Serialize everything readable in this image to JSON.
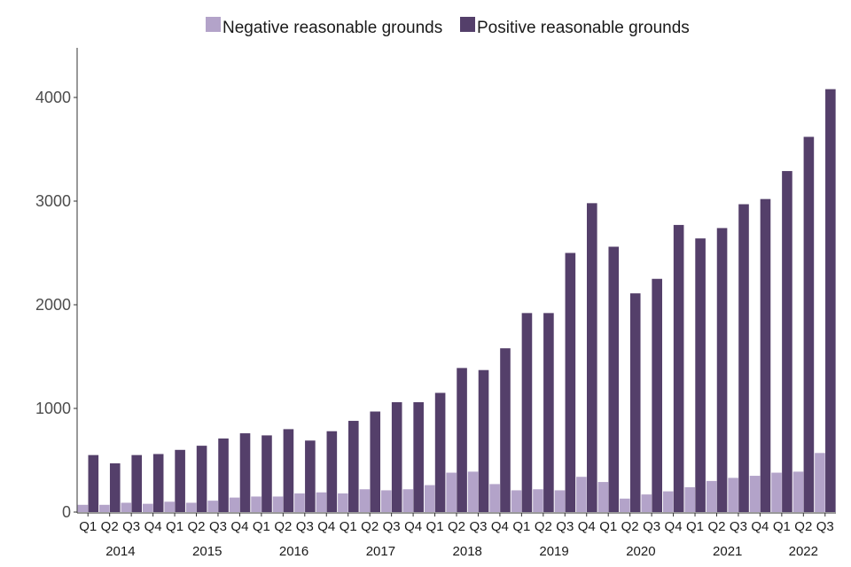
{
  "chart_data": {
    "type": "bar",
    "title": "",
    "xlabel": "",
    "ylabel": "",
    "ylim": [
      0,
      4500
    ],
    "yticks": [
      0,
      1000,
      2000,
      3000,
      4000
    ],
    "grid": false,
    "legend_position": "top",
    "categories": [
      "Q1",
      "Q2",
      "Q3",
      "Q4",
      "Q1",
      "Q2",
      "Q3",
      "Q4",
      "Q1",
      "Q2",
      "Q3",
      "Q4",
      "Q1",
      "Q2",
      "Q3",
      "Q4",
      "Q1",
      "Q2",
      "Q3",
      "Q4",
      "Q1",
      "Q2",
      "Q3",
      "Q4",
      "Q1",
      "Q2",
      "Q3",
      "Q4",
      "Q1",
      "Q2",
      "Q3",
      "Q4",
      "Q1",
      "Q2",
      "Q3"
    ],
    "years": [
      "2014",
      "2015",
      "2016",
      "2017",
      "2018",
      "2019",
      "2020",
      "2021",
      "2022"
    ],
    "series": [
      {
        "name": "Negative reasonable grounds",
        "color": "#b3a3c9",
        "values": [
          70,
          70,
          90,
          80,
          100,
          90,
          110,
          140,
          150,
          150,
          180,
          190,
          180,
          220,
          210,
          220,
          260,
          380,
          390,
          270,
          210,
          220,
          210,
          340,
          290,
          130,
          170,
          200,
          240,
          300,
          330,
          350,
          380,
          390,
          570
        ]
      },
      {
        "name": "Positive reasonable grounds",
        "color": "#543f6a",
        "values": [
          550,
          470,
          550,
          560,
          600,
          640,
          710,
          760,
          740,
          800,
          690,
          780,
          880,
          970,
          1060,
          1060,
          1150,
          1390,
          1370,
          1580,
          1920,
          1920,
          2500,
          2980,
          2560,
          2110,
          2250,
          2770,
          2640,
          2740,
          2970,
          3020,
          3290,
          3620,
          4080
        ]
      }
    ]
  }
}
